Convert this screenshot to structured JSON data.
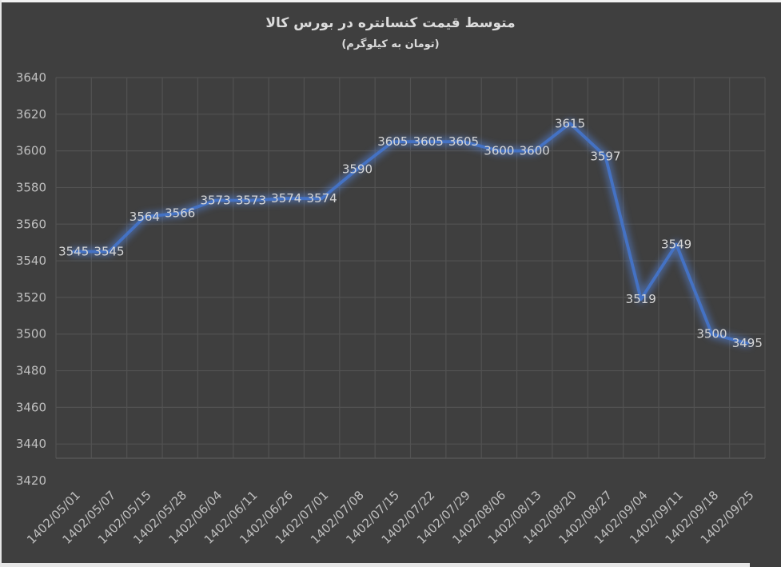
{
  "chart_data": {
    "type": "line",
    "title": "متوسط قیمت کنسانتره در بورس کالا",
    "subtitle": "(تومان به کیلوگرم)",
    "categories": [
      "1402/05/01",
      "1402/05/07",
      "1402/05/15",
      "1402/05/28",
      "1402/06/04",
      "1402/06/11",
      "1402/06/26",
      "1402/07/01",
      "1402/07/08",
      "1402/07/15",
      "1402/07/22",
      "1402/07/29",
      "1402/08/06",
      "1402/08/13",
      "1402/08/20",
      "1402/08/27",
      "1402/09/04",
      "1402/09/11",
      "1402/09/18",
      "1402/09/25"
    ],
    "values": [
      3545,
      3545,
      3564,
      3566,
      3573,
      3573,
      3574,
      3574,
      3590,
      3605,
      3605,
      3605,
      3600,
      3600,
      3615,
      3597,
      3519,
      3549,
      3500,
      3495
    ],
    "ylim": [
      3420,
      3640
    ],
    "ytick_step": 20,
    "yticks": [
      3420,
      3440,
      3460,
      3480,
      3500,
      3520,
      3540,
      3560,
      3580,
      3600,
      3620,
      3640
    ],
    "grid": true,
    "legend": "none",
    "data_label_position": "center",
    "colors": {
      "background": "#3f3f3f",
      "gridline": "#525252",
      "plot_border": "#5a5a5a",
      "line": "#4472c4",
      "glow": "#5585e0",
      "tick_text": "#bfbfbf",
      "data_label_text": "#d6d6d6",
      "title_text": "#dcdcdc"
    }
  }
}
